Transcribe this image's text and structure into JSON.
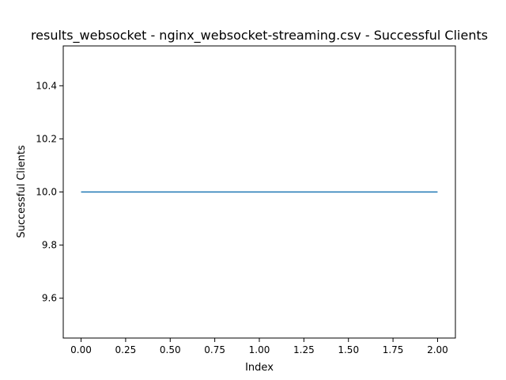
{
  "chart_data": {
    "type": "line",
    "title": "results_websocket - nginx_websocket-streaming.csv - Successful Clients",
    "xlabel": "Index",
    "ylabel": "Successful Clients",
    "x": [
      0,
      1,
      2
    ],
    "series": [
      {
        "values": [
          10.0,
          10.0,
          10.0
        ],
        "color": "#1f77b4"
      }
    ],
    "xlim": [
      -0.1,
      2.1
    ],
    "ylim": [
      9.45,
      10.55
    ],
    "xticks": [
      0.0,
      0.25,
      0.5,
      0.75,
      1.0,
      1.25,
      1.5,
      1.75,
      2.0
    ],
    "xtick_labels": [
      "0.00",
      "0.25",
      "0.50",
      "0.75",
      "1.00",
      "1.25",
      "1.50",
      "1.75",
      "2.00"
    ],
    "yticks": [
      9.6,
      9.8,
      10.0,
      10.2,
      10.4
    ],
    "ytick_labels": [
      "9.6",
      "9.8",
      "10.0",
      "10.2",
      "10.4"
    ],
    "grid": false,
    "legend": "none"
  }
}
